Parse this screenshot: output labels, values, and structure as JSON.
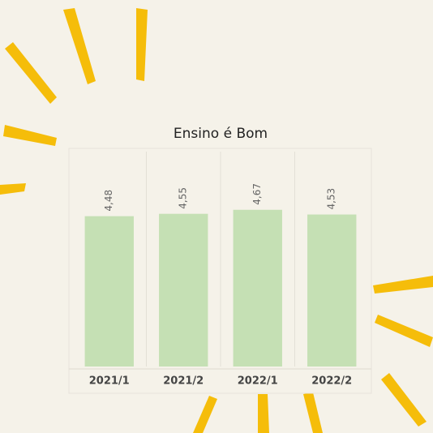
{
  "chart_data": {
    "type": "bar",
    "title": "Ensino é Bom",
    "categories": [
      "2021/1",
      "2021/2",
      "2022/1",
      "2022/2"
    ],
    "values": [
      4.48,
      4.55,
      4.67,
      4.53
    ],
    "value_labels": [
      "4,48",
      "4,55",
      "4,67",
      "4,53"
    ],
    "color": "#c5e0b4",
    "ylim": [
      0,
      6.5
    ]
  }
}
